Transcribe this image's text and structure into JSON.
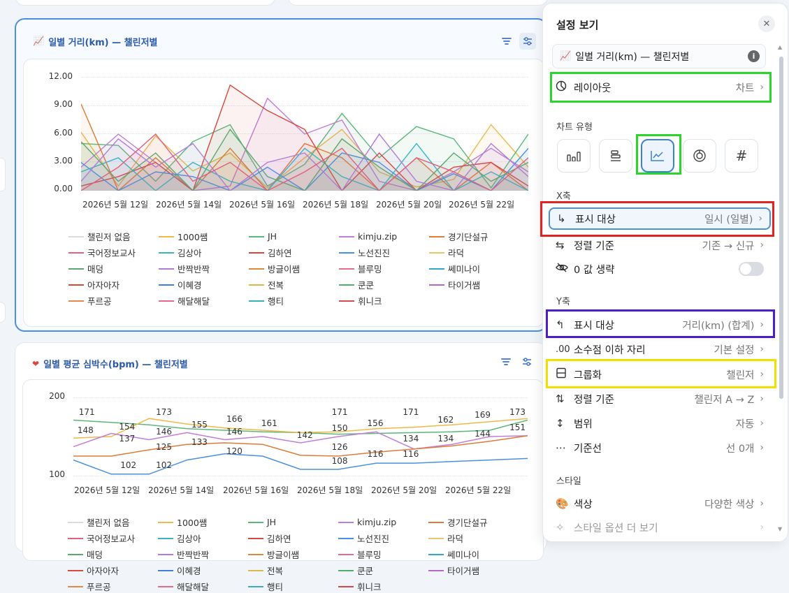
{
  "chart1": {
    "title": "일별 거리(km) — 챌린저별",
    "icon": "chart-line-icon",
    "y_ticks": [
      "12.00",
      "9.00",
      "6.00",
      "3.00",
      "0.00"
    ],
    "x_ticks": [
      "2026년 5월 12일",
      "2026년 5월 14일",
      "2026년 5월 16일",
      "2026년 5월 18일",
      "2026년 5월 20일",
      "2026년 5월 22일"
    ]
  },
  "chart2": {
    "title": "일별 평균 심박수(bpm) — 챌린저별",
    "icon": "heart-icon",
    "y_ticks": [
      "200",
      "100"
    ],
    "x_ticks": [
      "2026년 5월 12일",
      "2026년 5월 14일",
      "2026년 5월 16일",
      "2026년 5월 18일",
      "2026년 5월 20일",
      "2026년 5월 22일"
    ],
    "data_labels": [
      "171",
      "148",
      "154",
      "137",
      "173",
      "146",
      "125",
      "102",
      "102",
      "155",
      "133",
      "166",
      "146",
      "120",
      "161",
      "142",
      "171",
      "150",
      "126",
      "108",
      "156",
      "116",
      "171",
      "134",
      "116",
      "162",
      "134",
      "169",
      "144",
      "173",
      "151"
    ]
  },
  "legend": [
    {
      "name": "챌린저 없음",
      "color": "#dcdcdc"
    },
    {
      "name": "1000쌤",
      "color": "#f0b94a"
    },
    {
      "name": "JH",
      "color": "#5cb87a"
    },
    {
      "name": "kimju.zip",
      "color": "#c07ed8"
    },
    {
      "name": "경기단설규",
      "color": "#e07b39"
    },
    {
      "name": "국어정보교사",
      "color": "#e0607e"
    },
    {
      "name": "김상아",
      "color": "#3bb3c3"
    },
    {
      "name": "김하연",
      "color": "#d9463d"
    },
    {
      "name": "노선진진",
      "color": "#4a90e2"
    },
    {
      "name": "라덕",
      "color": "#f0c66a"
    },
    {
      "name": "매덩",
      "color": "#5aa86e"
    },
    {
      "name": "반짝반짝",
      "color": "#b07cd8"
    },
    {
      "name": "방글이쌤",
      "color": "#d98a3e"
    },
    {
      "name": "블루밍",
      "color": "#e46b8a"
    },
    {
      "name": "쎄미나이",
      "color": "#2fa8c9"
    },
    {
      "name": "아자아자",
      "color": "#d94a3d"
    },
    {
      "name": "이혜경",
      "color": "#3f7fd9"
    },
    {
      "name": "전복",
      "color": "#e0b84a"
    },
    {
      "name": "쿤쿤",
      "color": "#4fae6a"
    },
    {
      "name": "타이거쌤",
      "color": "#b568c9"
    },
    {
      "name": "푸르공",
      "color": "#e8894a"
    },
    {
      "name": "해달해달",
      "color": "#e8678a"
    },
    {
      "name": "행티",
      "color": "#35b0bd"
    },
    {
      "name": "휘니크",
      "color": "#d64a4a"
    }
  ],
  "chart_data": [
    {
      "type": "area",
      "title": "일별 거리(km) — 챌린저별",
      "ylim": [
        0,
        12
      ],
      "categories": [
        "2026-05-11",
        "2026-05-12",
        "2026-05-13",
        "2026-05-14",
        "2026-05-15",
        "2026-05-16",
        "2026-05-17",
        "2026-05-18",
        "2026-05-19",
        "2026-05-20",
        "2026-05-21",
        "2026-05-22",
        "2026-05-23"
      ],
      "series": [
        {
          "name": "1000쌤",
          "values": [
            6.2,
            0.5,
            5.8,
            2.1,
            4.0,
            0.3,
            3.5,
            6.5,
            2.0,
            0.4,
            1.2,
            7.0,
            2.5
          ]
        },
        {
          "name": "JH",
          "values": [
            5.0,
            4.8,
            1.0,
            5.2,
            7.0,
            0.5,
            2.8,
            8.2,
            3.5,
            6.8,
            5.5,
            0.3,
            6.0
          ]
        },
        {
          "name": "kimju.zip",
          "values": [
            2.5,
            6.0,
            3.0,
            0.0,
            0.5,
            9.8,
            6.0,
            7.5,
            1.0,
            0.0,
            2.0,
            4.5,
            2.0
          ]
        },
        {
          "name": "경기단설규",
          "values": [
            9.2,
            0.0,
            3.5,
            0.0,
            4.5,
            0.0,
            5.0,
            3.5,
            0.0,
            3.5,
            0.0,
            3.0,
            0.0
          ]
        },
        {
          "name": "김하연",
          "values": [
            0.5,
            1.5,
            3.0,
            0.0,
            11.2,
            8.5,
            6.5,
            0.0,
            4.0,
            0.0,
            2.5,
            3.0,
            0.5
          ]
        },
        {
          "name": "노선진진",
          "values": [
            3.0,
            0.0,
            2.0,
            1.5,
            0.0,
            2.5,
            0.0,
            4.0,
            3.0,
            0.0,
            1.8,
            0.0,
            4.5
          ]
        },
        {
          "name": "김상아",
          "values": [
            2.0,
            3.5,
            0.0,
            3.0,
            1.0,
            0.0,
            4.5,
            1.5,
            0.0,
            5.0,
            0.0,
            2.0,
            0.0
          ]
        },
        {
          "name": "매덩",
          "values": [
            5.2,
            1.0,
            4.0,
            0.0,
            6.5,
            1.5,
            0.0,
            5.5,
            2.5,
            0.0,
            4.0,
            1.0,
            3.0
          ]
        },
        {
          "name": "반짝반짝",
          "values": [
            1.0,
            5.5,
            2.5,
            5.0,
            0.0,
            3.0,
            4.0,
            0.0,
            6.0,
            1.0,
            0.0,
            5.0,
            1.5
          ]
        },
        {
          "name": "국어정보교사",
          "values": [
            0.0,
            2.5,
            6.0,
            1.0,
            3.0,
            0.0,
            2.0,
            4.5,
            0.0,
            3.5,
            2.0,
            0.0,
            3.5
          ]
        }
      ]
    },
    {
      "type": "line",
      "title": "일별 평균 심박수(bpm) — 챌린저별",
      "ylim": [
        100,
        200
      ],
      "categories": [
        "2026-05-11",
        "2026-05-12",
        "2026-05-13",
        "2026-05-14",
        "2026-05-15",
        "2026-05-16",
        "2026-05-17",
        "2026-05-18",
        "2026-05-19",
        "2026-05-20",
        "2026-05-21",
        "2026-05-22",
        "2026-05-23"
      ],
      "series": [
        {
          "name": "JH",
          "values": [
            171,
            168,
            165,
            160,
            158,
            156,
            155,
            153,
            154,
            155,
            156,
            158,
            171
          ]
        },
        {
          "name": "1000쌤",
          "values": [
            148,
            150,
            173,
            166,
            161,
            158,
            155,
            156,
            160,
            162,
            165,
            169,
            173
          ]
        },
        {
          "name": "kimju.zip",
          "values": [
            137,
            154,
            146,
            155,
            146,
            150,
            142,
            150,
            156,
            134,
            140,
            150,
            151
          ]
        },
        {
          "name": "경기단설규",
          "values": [
            125,
            125,
            133,
            140,
            142,
            140,
            126,
            125,
            130,
            134,
            138,
            144,
            151
          ]
        },
        {
          "name": "노선진진",
          "values": [
            120,
            102,
            102,
            120,
            128,
            125,
            108,
            108,
            116,
            116,
            118,
            120,
            122
          ]
        }
      ]
    }
  ],
  "panel": {
    "title": "설정 보기",
    "close_icon": "close-icon",
    "chart_name": "일별 거리(km) — 챌린저별",
    "layout": {
      "label": "레이아웃",
      "value": "차트"
    },
    "chart_type_section": "차트 유형",
    "chart_types": [
      "bar-chart-icon",
      "horizontal-bar-icon",
      "line-chart-icon",
      "pie-chart-icon",
      "number-icon"
    ],
    "x_section": "X축",
    "x_display": {
      "label": "표시 대상",
      "value": "일시 (일별)"
    },
    "x_sort": {
      "label": "정렬 기준",
      "value": "기존 → 신규"
    },
    "x_omit_zero": {
      "label": "0 값 생략"
    },
    "y_section": "Y축",
    "y_display": {
      "label": "표시 대상",
      "value": "거리(km) (합계)"
    },
    "decimals": {
      "icon_text": ".00",
      "label": "소수점 이하 자리",
      "value": "기본 설정"
    },
    "grouping": {
      "label": "그룹화",
      "value": "챌린저"
    },
    "y_sort": {
      "label": "정렬 기준",
      "value": "챌린저 A → Z"
    },
    "range": {
      "label": "범위",
      "value": "자동"
    },
    "baseline": {
      "label": "기준선",
      "value": "선 0개"
    },
    "style_section": "스타일",
    "color": {
      "label": "색상",
      "value": "다양한 색상"
    },
    "more_style": {
      "label": "스타일 옵션 더 보기"
    }
  }
}
